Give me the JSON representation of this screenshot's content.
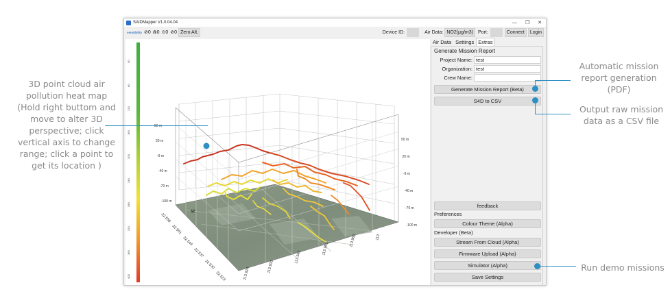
{
  "annotations": {
    "heatmap": [
      "3D point cloud air",
      "pollution heat map",
      "(Hold right buttom and",
      "move to alter 3D",
      "perspective; click",
      "vertical axis to change",
      "range; click a point to",
      "get its location )"
    ],
    "report": [
      "Automatic mission",
      "report generation",
      "(PDF)"
    ],
    "csv": [
      "Output raw mission",
      "data as a CSV file"
    ],
    "demo": [
      "Run demo missions"
    ]
  },
  "window": {
    "title": "SAIDMapper V1.0.04.04",
    "controls": [
      "—",
      "❐",
      "✕"
    ]
  },
  "toolbar": {
    "logo": "sensibility",
    "stat1": "⊘0",
    "stat2": "⋒0",
    "stat3": "⊙0",
    "stat4": "⊘0",
    "zero_alt": "Zero Alt.",
    "device_id_label": "Device ID:",
    "air_data_label": "Air Data:",
    "air_data_value": "NO2(μg/m3)",
    "port_label": "Port:",
    "connect": "Connect",
    "login": "Login"
  },
  "plot": {
    "colorbar_ticks": [
      "50",
      "80",
      "120",
      "160",
      "200",
      "240",
      "280",
      "320",
      "360",
      "400"
    ],
    "z_ticks_left": [
      "50 m",
      "20 m",
      "-9 m",
      "-40 m",
      "-70 m",
      "-100 m"
    ],
    "z_ticks_right": [
      "50 m",
      "20 m",
      "-9 m",
      "-40 m",
      "-70 m",
      "-100 m"
    ],
    "lat_ticks": [
      "22.558",
      "22.551",
      "22.544",
      "22.537",
      "22.530",
      "22.523"
    ],
    "lon_ticks": [
      "113.924",
      "113.933",
      "113.942",
      "113.951",
      "113.960",
      "113"
    ],
    "map_marker": "SZ"
  },
  "colors": {
    "accent": "#2f8fc4",
    "annotation_text": "#8a8a8a"
  },
  "panel": {
    "tabs": [
      "Air Data",
      "Settings",
      "Extras"
    ],
    "active_tab": "Extras",
    "section_title": "Generate Mission Report",
    "project_label": "Project Name:",
    "project_value": "test",
    "org_label": "Organization:",
    "org_value": "test",
    "crew_label": "Crew Name:",
    "crew_value": "",
    "generate_report": "Generate Mission Report (Beta)",
    "s4d_to_csv": "S4D to CSV",
    "feedback": "feedback",
    "preferences_label": "Preferences",
    "colour_theme": "Colour Theme (Alpha)",
    "developer_label": "Developer (Beta)",
    "stream_cloud": "Stream From Cloud (Alpha)",
    "firmware_upload": "Firmware Upload (Alpha)",
    "simulator": "Simulator (Alpha)",
    "save_settings": "Save Settings"
  }
}
